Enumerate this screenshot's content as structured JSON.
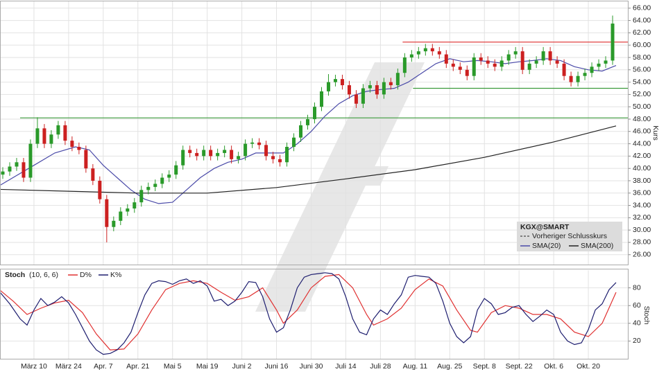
{
  "chart_data": [
    {
      "type": "candlestick",
      "y_label": "Kurs",
      "legend_title": "KGX@SMART",
      "prev_close_label": "Vorheriger Schlusskurs",
      "up_color": "#2a9a2a",
      "down_color": "#cc2020",
      "grid": true,
      "xlim": [
        -9.6,
        171.4
      ],
      "ylim": [
        24.4,
        67.1
      ],
      "yticks": [
        {
          "value": 26,
          "label": "26.00"
        },
        {
          "value": 28,
          "label": "28.00"
        },
        {
          "value": 30,
          "label": "30.00"
        },
        {
          "value": 32,
          "label": "32.00"
        },
        {
          "value": 34,
          "label": "34.00"
        },
        {
          "value": 36,
          "label": "36.00"
        },
        {
          "value": 38,
          "label": "38.00"
        },
        {
          "value": 40,
          "label": "40.00"
        },
        {
          "value": 42,
          "label": "42.00"
        },
        {
          "value": 44,
          "label": "44.00"
        },
        {
          "value": 46,
          "label": "46.00"
        },
        {
          "value": 48,
          "label": "48.00"
        },
        {
          "value": 50,
          "label": "50.00"
        },
        {
          "value": 52,
          "label": "52.00"
        },
        {
          "value": 54,
          "label": "54.00"
        },
        {
          "value": 56,
          "label": "56.00"
        },
        {
          "value": 58,
          "label": "58.00"
        },
        {
          "value": 60,
          "label": "60.00"
        },
        {
          "value": 62,
          "label": "62.00"
        },
        {
          "value": 64,
          "label": "64.00"
        },
        {
          "value": 66,
          "label": "66.00"
        }
      ],
      "x": [
        -9,
        -7,
        -5,
        -3,
        -1,
        1,
        3,
        5,
        7,
        9,
        11,
        13,
        15,
        17,
        19,
        21,
        23,
        25,
        27,
        29,
        31,
        33,
        35,
        37,
        39,
        41,
        43,
        45,
        47,
        49,
        51,
        53,
        55,
        57,
        59,
        61,
        63,
        65,
        67,
        69,
        71,
        73,
        75,
        77,
        79,
        81,
        83,
        85,
        87,
        89,
        91,
        93,
        95,
        97,
        99,
        101,
        103,
        105,
        107,
        109,
        111,
        113,
        115,
        117,
        119,
        121,
        123,
        125,
        127,
        129,
        131,
        133,
        135,
        137,
        139,
        141,
        143,
        145,
        147,
        149,
        151,
        153,
        155,
        157,
        159,
        161,
        163,
        165,
        167
      ],
      "open": [
        39.0,
        39.5,
        40.3,
        41.0,
        38.5,
        44.0,
        46.5,
        44.0,
        45.5,
        47.0,
        44.5,
        43.5,
        43.0,
        40.0,
        38.0,
        35.0,
        30.5,
        31.5,
        33.0,
        33.5,
        34.5,
        36.5,
        37.0,
        37.5,
        38.5,
        39.0,
        40.5,
        43.0,
        42.5,
        42.0,
        43.0,
        42.0,
        42.5,
        43.0,
        41.5,
        42.0,
        44.0,
        44.2,
        43.8,
        42.0,
        41.5,
        41.0,
        43.5,
        45.0,
        47.0,
        48.0,
        50.0,
        52.5,
        54.0,
        54.5,
        53.5,
        52.0,
        50.5,
        53.0,
        53.5,
        52.0,
        54.0,
        53.5,
        55.5,
        58.0,
        58.5,
        59.0,
        59.5,
        59.0,
        58.5,
        57.0,
        56.5,
        56.0,
        55.0,
        58.0,
        57.5,
        57.0,
        56.5,
        57.5,
        58.5,
        59.0,
        56.0,
        57.0,
        57.5,
        59.0,
        57.5,
        57.0,
        55.0,
        54.0,
        55.0,
        55.5,
        56.5,
        57.0,
        57.5
      ],
      "high": [
        40.2,
        41.0,
        41.7,
        41.7,
        44.7,
        48.3,
        47.2,
        46.2,
        47.7,
        47.7,
        45.2,
        44.2,
        43.7,
        40.7,
        38.7,
        35.7,
        32.2,
        33.7,
        34.2,
        35.2,
        37.2,
        37.7,
        38.2,
        39.2,
        39.7,
        41.2,
        43.7,
        43.7,
        43.2,
        43.7,
        43.7,
        43.2,
        43.7,
        43.7,
        42.7,
        44.7,
        44.9,
        44.9,
        44.5,
        42.7,
        42.2,
        44.2,
        45.7,
        47.7,
        48.7,
        50.7,
        53.2,
        55.3,
        55.2,
        55.2,
        54.2,
        52.7,
        53.7,
        54.2,
        54.2,
        54.7,
        54.7,
        56.2,
        58.7,
        59.2,
        59.7,
        60.2,
        60.2,
        59.7,
        59.2,
        57.7,
        57.2,
        56.7,
        58.7,
        58.7,
        58.2,
        57.7,
        58.2,
        59.2,
        59.7,
        59.7,
        57.7,
        58.2,
        59.7,
        59.7,
        58.2,
        57.7,
        55.7,
        55.7,
        56.2,
        57.2,
        57.7,
        58.2,
        64.8
      ],
      "low": [
        38.3,
        38.8,
        39.6,
        37.8,
        37.8,
        43.3,
        43.3,
        43.3,
        44.8,
        43.8,
        42.8,
        42.3,
        39.3,
        37.3,
        34.3,
        28.0,
        29.8,
        30.8,
        32.3,
        32.8,
        33.8,
        35.8,
        36.3,
        36.8,
        37.8,
        38.3,
        39.8,
        41.8,
        41.3,
        41.3,
        41.3,
        41.3,
        41.8,
        40.8,
        40.8,
        41.3,
        43.3,
        43.1,
        41.3,
        40.8,
        40.3,
        40.3,
        42.8,
        44.3,
        46.3,
        47.3,
        49.3,
        51.8,
        53.3,
        52.8,
        51.3,
        49.8,
        49.8,
        52.3,
        51.3,
        51.3,
        52.8,
        52.8,
        54.8,
        57.3,
        57.8,
        58.3,
        58.3,
        57.8,
        56.3,
        55.8,
        55.3,
        54.3,
        54.3,
        56.8,
        56.3,
        55.8,
        55.8,
        56.8,
        57.8,
        55.3,
        55.3,
        56.3,
        56.8,
        56.8,
        56.3,
        54.3,
        53.3,
        53.3,
        54.3,
        54.8,
        55.8,
        56.3,
        56.8
      ],
      "close": [
        39.5,
        40.3,
        41.0,
        38.5,
        44.0,
        46.5,
        44.0,
        45.5,
        47.0,
        44.5,
        43.5,
        43.0,
        40.0,
        38.0,
        35.0,
        30.5,
        31.5,
        33.0,
        33.5,
        34.5,
        36.5,
        37.0,
        37.5,
        38.5,
        39.0,
        40.5,
        43.0,
        42.5,
        42.0,
        43.0,
        42.0,
        42.5,
        43.0,
        41.5,
        42.0,
        44.0,
        44.2,
        43.8,
        42.0,
        41.5,
        41.0,
        43.5,
        45.0,
        47.0,
        48.0,
        50.0,
        52.5,
        54.0,
        54.5,
        53.5,
        52.0,
        50.5,
        53.0,
        53.5,
        52.0,
        54.0,
        53.5,
        55.5,
        58.0,
        58.5,
        59.0,
        59.5,
        59.0,
        58.5,
        57.0,
        56.5,
        56.0,
        55.0,
        58.0,
        57.5,
        57.0,
        56.5,
        57.5,
        58.5,
        59.0,
        56.0,
        57.0,
        57.5,
        59.0,
        57.5,
        57.0,
        55.0,
        54.0,
        55.0,
        55.5,
        56.5,
        57.0,
        57.5,
        63.5
      ],
      "series": [
        {
          "name": "SMA(20)",
          "color": "#4a4aa8",
          "x": [
            -10,
            0,
            6,
            12,
            16,
            20,
            24,
            28,
            32,
            36,
            40,
            44,
            48,
            52,
            56,
            60,
            64,
            68,
            72,
            76,
            80,
            84,
            88,
            92,
            96,
            100,
            104,
            108,
            112,
            116,
            120,
            124,
            128,
            132,
            136,
            140,
            144,
            148,
            152,
            156,
            160,
            164,
            168
          ],
          "values": [
            37.2,
            40.5,
            42.5,
            43.5,
            43.0,
            40.5,
            38.5,
            36.5,
            35.0,
            34.3,
            34.5,
            36.5,
            38.5,
            40.0,
            41.0,
            41.5,
            42.5,
            42.5,
            42.5,
            44.0,
            46.0,
            48.5,
            50.5,
            51.8,
            52.5,
            52.8,
            53.0,
            54.0,
            55.5,
            57.0,
            57.8,
            57.3,
            57.5,
            57.3,
            57.0,
            57.3,
            57.5,
            57.8,
            57.5,
            56.5,
            56.0,
            55.8,
            56.7
          ]
        },
        {
          "name": "SMA(200)",
          "color": "#222222",
          "x": [
            -10,
            10,
            30,
            50,
            70,
            90,
            110,
            130,
            150,
            168
          ],
          "values": [
            36.6,
            36.3,
            36.0,
            36.0,
            36.9,
            38.3,
            39.8,
            41.8,
            44.3,
            46.9
          ]
        }
      ],
      "hlines": [
        {
          "value": 60.5,
          "color": "#e04040",
          "x_start": 106.4
        },
        {
          "value": 53,
          "color": "#3a9a3a",
          "x_start": 109.4
        },
        {
          "value": 48.2,
          "color": "#3a9a3a",
          "x_start": -4
        }
      ]
    },
    {
      "type": "line",
      "title": "Stoch",
      "params": "(10, 6, 6)",
      "y_label": "Stoch",
      "grid": true,
      "xlim": [
        -9.6,
        171.4
      ],
      "ylim": [
        0,
        100
      ],
      "yticks": [
        20,
        40,
        60,
        80
      ],
      "xticks": [
        {
          "value": 0,
          "label": "März 10"
        },
        {
          "value": 10,
          "label": "März 24"
        },
        {
          "value": 20,
          "label": "Apr. 7"
        },
        {
          "value": 30,
          "label": "Apr. 21"
        },
        {
          "value": 40,
          "label": "Mai 5"
        },
        {
          "value": 50,
          "label": "Mai 19"
        },
        {
          "value": 60,
          "label": "Juni 2"
        },
        {
          "value": 70,
          "label": "Juni 16"
        },
        {
          "value": 80,
          "label": "Juni 30"
        },
        {
          "value": 90,
          "label": "Juli 14"
        },
        {
          "value": 100,
          "label": "Juli 28"
        },
        {
          "value": 110,
          "label": "Aug. 11"
        },
        {
          "value": 120,
          "label": "Aug. 25"
        },
        {
          "value": 130,
          "label": "Sept. 8"
        },
        {
          "value": 140,
          "label": "Sept. 22"
        },
        {
          "value": 150,
          "label": "Okt. 6"
        },
        {
          "value": 160,
          "label": "Okt. 20"
        }
      ],
      "series": [
        {
          "name": "D%",
          "color": "#e03030",
          "x": [
            -10,
            -6,
            -2,
            2,
            6,
            10,
            14,
            18,
            22,
            26,
            30,
            34,
            38,
            42,
            46,
            50,
            54,
            58,
            62,
            66,
            70,
            72,
            76,
            80,
            84,
            88,
            92,
            96,
            98,
            102,
            106,
            110,
            114,
            118,
            122,
            126,
            128,
            132,
            136,
            140,
            144,
            148,
            152,
            156,
            160,
            164,
            168
          ],
          "values": [
            78,
            65,
            50,
            57,
            63,
            66,
            52,
            28,
            10,
            11,
            28,
            55,
            78,
            85,
            88,
            85,
            75,
            66,
            70,
            80,
            55,
            40,
            55,
            80,
            93,
            95,
            80,
            50,
            38,
            45,
            57,
            78,
            90,
            82,
            55,
            32,
            30,
            52,
            60,
            57,
            50,
            50,
            45,
            30,
            25,
            40,
            75
          ]
        },
        {
          "name": "K%",
          "color": "#1c1c6e",
          "x": [
            -10,
            -7,
            -4,
            -2,
            0,
            2,
            4,
            6,
            8,
            10,
            12,
            14,
            16,
            18,
            20,
            22,
            24,
            26,
            28,
            30,
            32,
            34,
            36,
            38,
            40,
            42,
            44,
            46,
            48,
            50,
            52,
            54,
            56,
            58,
            60,
            62,
            64,
            66,
            68,
            70,
            72,
            74,
            76,
            78,
            80,
            82,
            84,
            86,
            88,
            90,
            92,
            94,
            96,
            98,
            100,
            102,
            104,
            106,
            108,
            110,
            112,
            114,
            116,
            118,
            120,
            122,
            124,
            126,
            128,
            130,
            132,
            134,
            136,
            138,
            140,
            142,
            144,
            146,
            148,
            150,
            152,
            154,
            156,
            158,
            160,
            162,
            164,
            166,
            168
          ],
          "values": [
            76,
            62,
            45,
            38,
            55,
            68,
            60,
            64,
            70,
            63,
            50,
            35,
            20,
            10,
            5,
            6,
            10,
            18,
            30,
            52,
            72,
            85,
            88,
            87,
            84,
            88,
            90,
            85,
            88,
            82,
            65,
            67,
            60,
            65,
            75,
            87,
            86,
            70,
            45,
            30,
            35,
            55,
            80,
            92,
            95,
            96,
            97,
            96,
            90,
            70,
            45,
            30,
            27,
            45,
            55,
            50,
            62,
            72,
            92,
            94,
            93,
            92,
            85,
            65,
            40,
            25,
            18,
            25,
            55,
            68,
            62,
            50,
            52,
            58,
            60,
            50,
            42,
            48,
            55,
            50,
            30,
            20,
            16,
            18,
            33,
            55,
            62,
            78,
            86
          ]
        }
      ]
    }
  ]
}
